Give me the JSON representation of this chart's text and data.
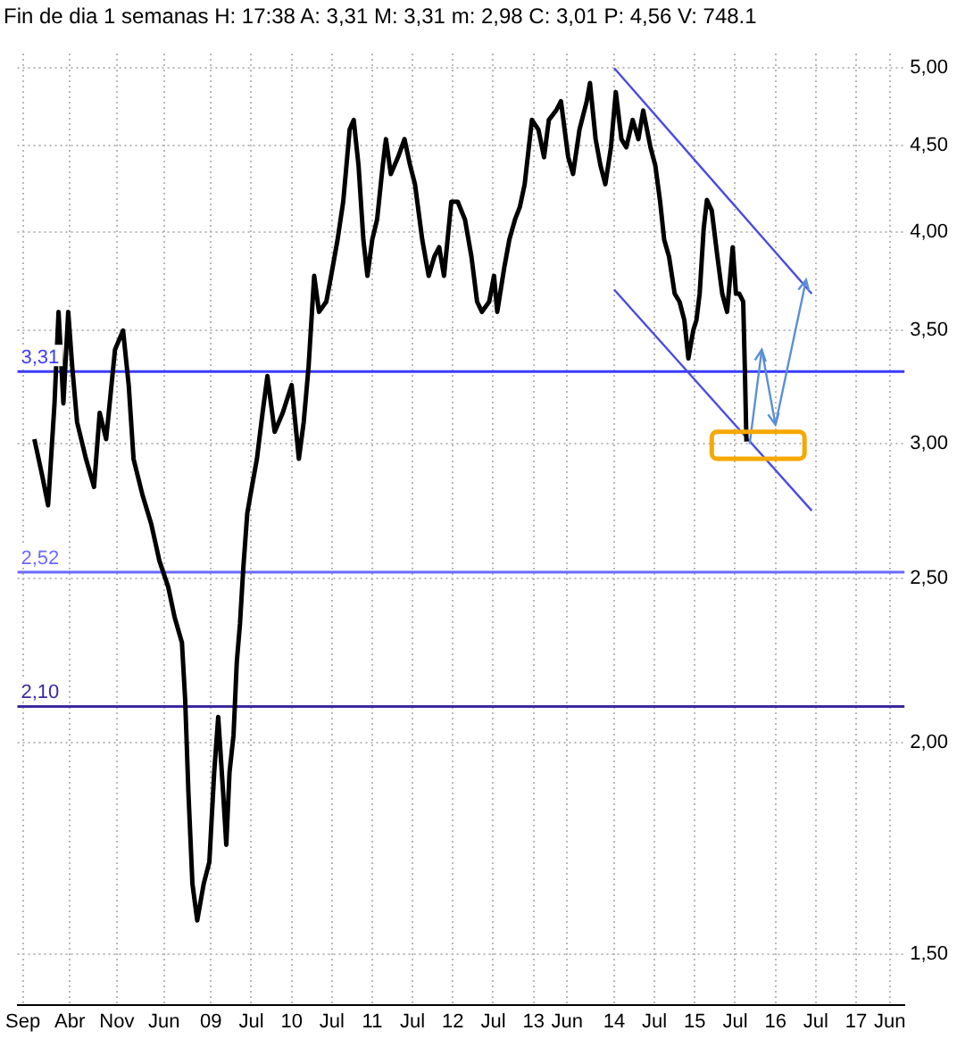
{
  "chart_data": {
    "type": "line",
    "title": "Fin de dia 1 semanas H: 17:38 A: 3,31 M: 3,31 m: 2,98 C: 3,01 P: 4,56 V: 748.1",
    "series": [
      {
        "type": "line",
        "color": "#000000",
        "x": [
          2006.81,
          2006.91,
          2006.98,
          2007.06,
          2007.11,
          2007.17,
          2007.23,
          2007.28,
          2007.34,
          2007.45,
          2007.55,
          2007.62,
          2007.7,
          2007.81,
          2007.91,
          2007.98,
          2008.04,
          2008.15,
          2008.26,
          2008.36,
          2008.47,
          2008.55,
          2008.64,
          2008.68,
          2008.72,
          2008.77,
          2008.83,
          2008.91,
          2008.98,
          2009.04,
          2009.09,
          2009.15,
          2009.19,
          2009.23,
          2009.28,
          2009.32,
          2009.36,
          2009.4,
          2009.45,
          2009.49,
          2009.57,
          2009.64,
          2009.7,
          2009.79,
          2009.89,
          2010.0,
          2010.09,
          2010.15,
          2010.21,
          2010.28,
          2010.34,
          2010.43,
          2010.49,
          2010.57,
          2010.64,
          2010.72,
          2010.77,
          2010.83,
          2010.89,
          2010.94,
          2011.0,
          2011.06,
          2011.13,
          2011.17,
          2011.23,
          2011.32,
          2011.4,
          2011.47,
          2011.53,
          2011.62,
          2011.7,
          2011.77,
          2011.83,
          2011.89,
          2011.98,
          2012.06,
          2012.15,
          2012.23,
          2012.3,
          2012.36,
          2012.45,
          2012.51,
          2012.55,
          2012.64,
          2012.7,
          2012.77,
          2012.83,
          2012.89,
          2012.98,
          2013.06,
          2013.13,
          2013.19,
          2013.28,
          2013.34,
          2013.43,
          2013.49,
          2013.57,
          2013.66,
          2013.7,
          2013.77,
          2013.83,
          2013.89,
          2013.96,
          2014.02,
          2014.09,
          2014.15,
          2014.23,
          2014.3,
          2014.36,
          2014.45,
          2014.51,
          2014.57,
          2014.62,
          2014.68,
          2014.75,
          2014.81,
          2014.87,
          2014.92,
          2014.98,
          2015.02,
          2015.06,
          2015.11,
          2015.15,
          2015.21,
          2015.28,
          2015.34,
          2015.4,
          2015.47,
          2015.51,
          2015.55,
          2015.6,
          2015.62,
          2015.64
        ],
        "values": [
          3.02,
          2.87,
          2.76,
          3.17,
          3.59,
          3.17,
          3.59,
          3.33,
          3.09,
          2.94,
          2.83,
          3.13,
          3.02,
          3.41,
          3.5,
          3.25,
          2.94,
          2.8,
          2.69,
          2.56,
          2.47,
          2.37,
          2.29,
          2.12,
          1.87,
          1.65,
          1.57,
          1.65,
          1.7,
          1.92,
          2.07,
          1.87,
          1.74,
          1.92,
          2.02,
          2.23,
          2.35,
          2.53,
          2.73,
          2.8,
          2.94,
          3.13,
          3.29,
          3.05,
          3.13,
          3.25,
          2.94,
          3.09,
          3.33,
          3.77,
          3.59,
          3.64,
          3.77,
          3.96,
          4.17,
          4.6,
          4.66,
          4.38,
          3.96,
          3.77,
          3.96,
          4.07,
          4.38,
          4.54,
          4.33,
          4.43,
          4.54,
          4.38,
          4.27,
          3.96,
          3.77,
          3.87,
          3.92,
          3.77,
          4.17,
          4.17,
          4.07,
          3.87,
          3.64,
          3.59,
          3.64,
          3.77,
          3.59,
          3.82,
          3.96,
          4.07,
          4.14,
          4.27,
          4.66,
          4.6,
          4.43,
          4.66,
          4.72,
          4.78,
          4.43,
          4.33,
          4.6,
          4.78,
          4.9,
          4.54,
          4.38,
          4.27,
          4.49,
          4.84,
          4.54,
          4.49,
          4.66,
          4.54,
          4.72,
          4.49,
          4.38,
          4.17,
          3.96,
          3.87,
          3.68,
          3.64,
          3.55,
          3.37,
          3.5,
          3.55,
          3.68,
          4.02,
          4.18,
          4.12,
          3.87,
          3.68,
          3.59,
          3.92,
          3.68,
          3.68,
          3.64,
          3.33,
          3.01
        ]
      },
      {
        "type": "line",
        "color": "#4a4ae6",
        "x": [
          2014.0,
          2016.45
        ],
        "values": [
          5.0,
          3.68
        ]
      },
      {
        "type": "line",
        "color": "#4a4ae6",
        "x": [
          2014.0,
          2016.45
        ],
        "values": [
          3.7,
          2.74
        ]
      }
    ],
    "xlim": [
      2006.6,
      2017.6
    ],
    "xticks": [
      {
        "value": 2006.667,
        "label": "Sep"
      },
      {
        "value": 2007.25,
        "label": "Abr"
      },
      {
        "value": 2007.833,
        "label": "Nov"
      },
      {
        "value": 2008.417,
        "label": "Jun"
      },
      {
        "value": 2009,
        "label": "09"
      },
      {
        "value": 2009.5,
        "label": "Jul"
      },
      {
        "value": 2010,
        "label": "10"
      },
      {
        "value": 2010.5,
        "label": "Jul"
      },
      {
        "value": 2011,
        "label": "11"
      },
      {
        "value": 2011.5,
        "label": "Jul"
      },
      {
        "value": 2012,
        "label": "12"
      },
      {
        "value": 2012.5,
        "label": "Jul"
      },
      {
        "value": 2013,
        "label": "13"
      },
      {
        "value": 2013.417,
        "label": "Jun"
      },
      {
        "value": 2014,
        "label": "14"
      },
      {
        "value": 2014.5,
        "label": "Jul"
      },
      {
        "value": 2015,
        "label": "15"
      },
      {
        "value": 2015.5,
        "label": "Jul"
      },
      {
        "value": 2016,
        "label": "16"
      },
      {
        "value": 2016.5,
        "label": "Jul"
      },
      {
        "value": 2017,
        "label": "17"
      },
      {
        "value": 2017.417,
        "label": "Jun"
      }
    ],
    "ylim": [
      1.4,
      5.1
    ],
    "yticks": [
      {
        "value": 1.5,
        "label": "1,50"
      },
      {
        "value": 2,
        "label": "2,00"
      },
      {
        "value": 2.5,
        "label": "2,50"
      },
      {
        "value": 3,
        "label": "3,00"
      },
      {
        "value": 3.5,
        "label": "3,50"
      },
      {
        "value": 4,
        "label": "4,00"
      },
      {
        "value": 4.5,
        "label": "4,50"
      },
      {
        "value": 5,
        "label": "5,00"
      }
    ],
    "log": true,
    "grid": true,
    "legend": false,
    "ref_lines": [
      {
        "axis": "y",
        "value": 3.31,
        "label": "3,31",
        "color": "#3a3aff"
      },
      {
        "axis": "y",
        "value": 2.52,
        "label": "2,52",
        "color": "#6a6aff"
      },
      {
        "axis": "y",
        "value": 2.1,
        "label": "2,10",
        "color": "#3a2aa0"
      }
    ]
  }
}
